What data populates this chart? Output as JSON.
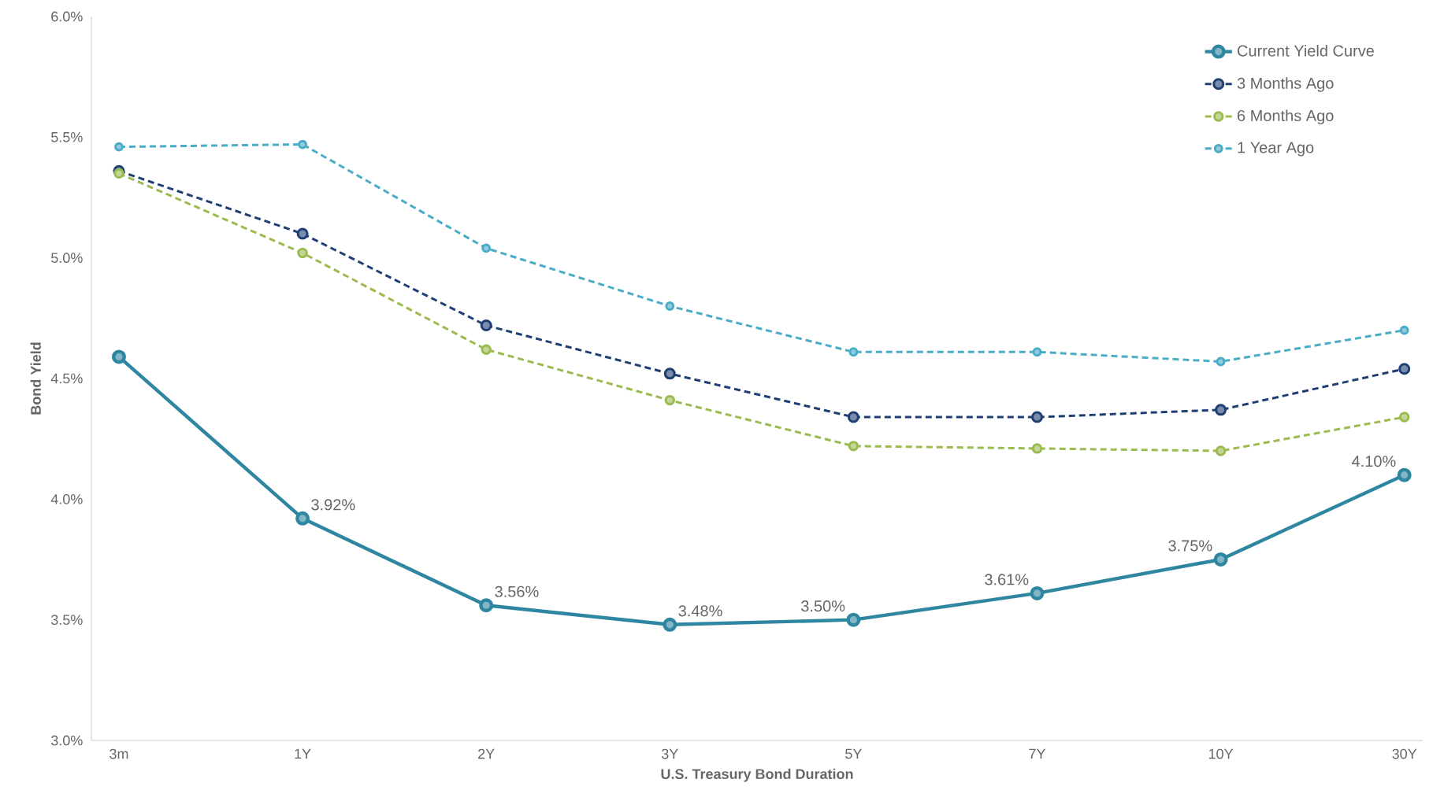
{
  "chart_data": {
    "type": "line",
    "xlabel": "U.S. Treasury Bond Duration",
    "ylabel": "Bond Yield",
    "categories": [
      "3m",
      "1Y",
      "2Y",
      "3Y",
      "5Y",
      "7Y",
      "10Y",
      "30Y"
    ],
    "ylim": [
      3,
      6
    ],
    "yticks": [
      {
        "value": 3,
        "label": "3.0%"
      },
      {
        "value": 3.5,
        "label": "3.5%"
      },
      {
        "value": 4,
        "label": "4.0%"
      },
      {
        "value": 4.5,
        "label": "4.5%"
      },
      {
        "value": 5,
        "label": "5.0%"
      },
      {
        "value": 5.5,
        "label": "5.5%"
      },
      {
        "value": 6,
        "label": "6.0%"
      }
    ],
    "legend": "top right",
    "marker": "circle",
    "series": [
      {
        "name": "Current Yield Curve",
        "color": "#2e86a0",
        "line_style": "solid",
        "values": [
          4.59,
          3.92,
          3.56,
          3.48,
          3.5,
          3.61,
          3.75,
          4.1
        ],
        "value_labels": [
          null,
          "3.92%",
          "3.56%",
          "3.48%",
          "3.50%",
          "3.61%",
          "3.75%",
          "4.10%"
        ]
      },
      {
        "name": "3 Months Ago",
        "color": "#1f3f73",
        "line_style": "dashed",
        "values": [
          5.36,
          5.1,
          4.72,
          4.52,
          4.34,
          4.34,
          4.37,
          4.54
        ]
      },
      {
        "name": "6 Months Ago",
        "color": "#9bbb50",
        "line_style": "dashed",
        "values": [
          5.35,
          5.02,
          4.62,
          4.41,
          4.22,
          4.21,
          4.2,
          4.34
        ]
      },
      {
        "name": "1 Year Ago",
        "color": "#4aacc6",
        "line_style": "dashed",
        "values": [
          5.46,
          5.47,
          5.04,
          4.8,
          4.61,
          4.61,
          4.57,
          4.7
        ]
      }
    ]
  }
}
